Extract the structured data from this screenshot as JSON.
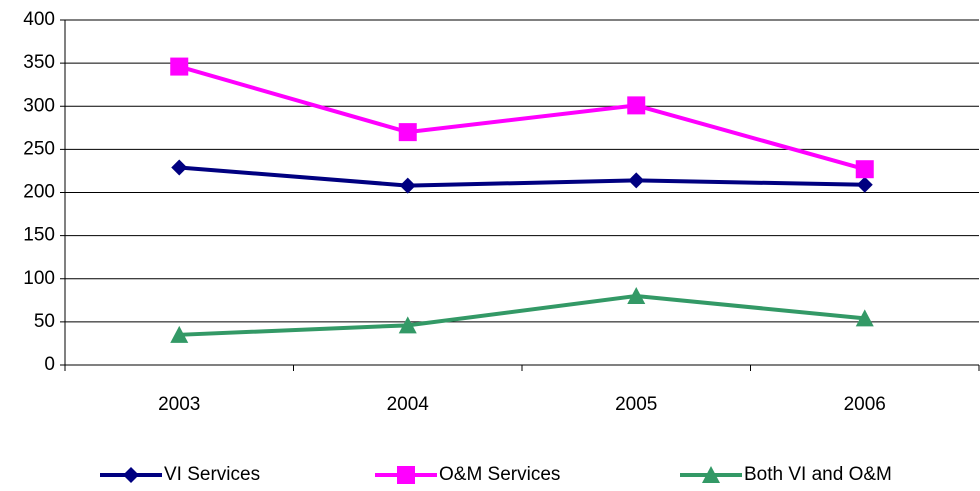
{
  "chart_data": {
    "type": "line",
    "categories": [
      "2003",
      "2004",
      "2005",
      "2006"
    ],
    "series": [
      {
        "name": "VI Services",
        "color": "#000080",
        "marker": "diamond",
        "values": [
          229,
          208,
          214,
          209
        ]
      },
      {
        "name": "O&M Services",
        "color": "#ff00ff",
        "marker": "square",
        "values": [
          346,
          270,
          301,
          227
        ]
      },
      {
        "name": "Both VI and O&M",
        "color": "#339966",
        "marker": "triangle",
        "values": [
          35,
          46,
          80,
          54
        ]
      }
    ],
    "ylim": [
      0,
      400
    ],
    "yticks": [
      0,
      50,
      100,
      150,
      200,
      250,
      300,
      350,
      400
    ],
    "grid": true,
    "legend": "bottom"
  }
}
